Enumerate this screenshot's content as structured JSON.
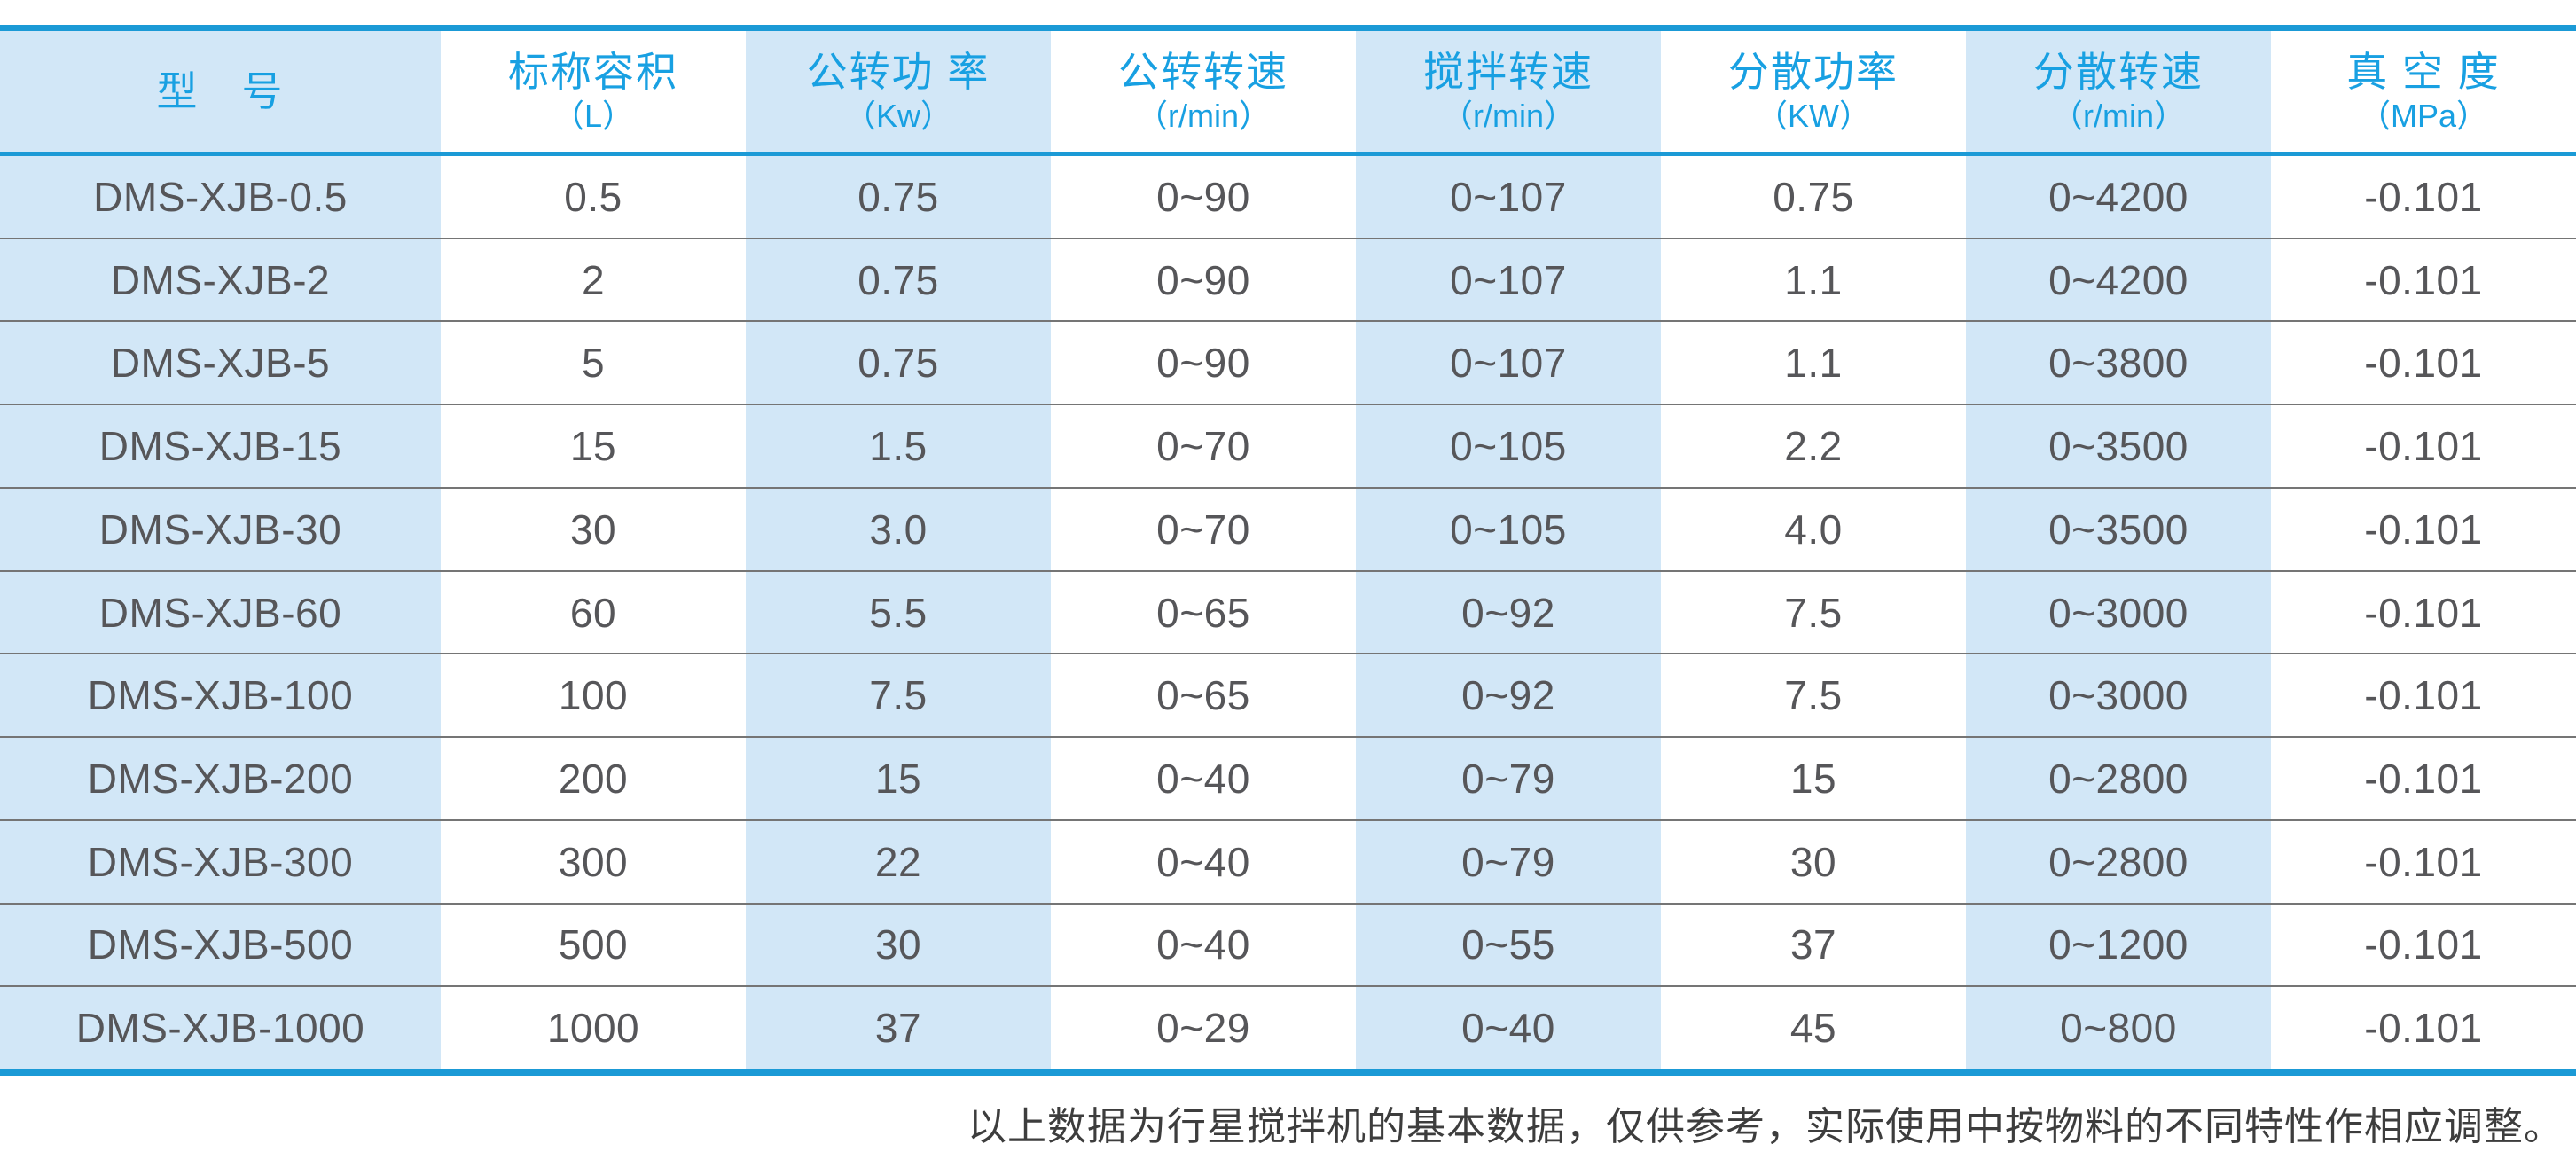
{
  "table": {
    "columns": [
      {
        "key": "model",
        "main": "型　号",
        "sub": "",
        "shaded": true
      },
      {
        "key": "capacity",
        "main": "标称容积",
        "sub": "（L）",
        "shaded": false
      },
      {
        "key": "rev-power",
        "main": "公转功 率",
        "sub": "（Kw）",
        "shaded": true
      },
      {
        "key": "rev-speed",
        "main": "公转转速",
        "sub": "（r/min）",
        "shaded": false
      },
      {
        "key": "stir-speed",
        "main": "搅拌转速",
        "sub": "（r/min）",
        "shaded": true
      },
      {
        "key": "dispersal-power",
        "main": "分散功率",
        "sub": "（KW）",
        "shaded": false
      },
      {
        "key": "dispersal-speed",
        "main": "分散转速",
        "sub": "（r/min）",
        "shaded": true
      },
      {
        "key": "vacuum",
        "main": "真 空 度",
        "sub": "（MPa）",
        "shaded": false
      }
    ],
    "rows": [
      [
        "DMS-XJB-0.5",
        "0.5",
        "0.75",
        "0~90",
        "0~107",
        "0.75",
        "0~4200",
        "-0.101"
      ],
      [
        "DMS-XJB-2",
        "2",
        "0.75",
        "0~90",
        "0~107",
        "1.1",
        "0~4200",
        "-0.101"
      ],
      [
        "DMS-XJB-5",
        "5",
        "0.75",
        "0~90",
        "0~107",
        "1.1",
        "0~3800",
        "-0.101"
      ],
      [
        "DMS-XJB-15",
        "15",
        "1.5",
        "0~70",
        "0~105",
        "2.2",
        "0~3500",
        "-0.101"
      ],
      [
        "DMS-XJB-30",
        "30",
        "3.0",
        "0~70",
        "0~105",
        "4.0",
        "0~3500",
        "-0.101"
      ],
      [
        "DMS-XJB-60",
        "60",
        "5.5",
        "0~65",
        "0~92",
        "7.5",
        "0~3000",
        "-0.101"
      ],
      [
        "DMS-XJB-100",
        "100",
        "7.5",
        "0~65",
        "0~92",
        "7.5",
        "0~3000",
        "-0.101"
      ],
      [
        "DMS-XJB-200",
        "200",
        "15",
        "0~40",
        "0~79",
        "15",
        "0~2800",
        "-0.101"
      ],
      [
        "DMS-XJB-300",
        "300",
        "22",
        "0~40",
        "0~79",
        "30",
        "0~2800",
        "-0.101"
      ],
      [
        "DMS-XJB-500",
        "500",
        "30",
        "0~40",
        "0~55",
        "37",
        "0~1200",
        "-0.101"
      ],
      [
        "DMS-XJB-1000",
        "1000",
        "37",
        "0~29",
        "0~40",
        "45",
        "0~800",
        "-0.101"
      ]
    ]
  },
  "note": {
    "text": "以上数据为行星搅拌机的基本数据，仅供参考，实际使用中按物料的不同特性作相应调整。"
  },
  "colors": {
    "accent_blue": "#1b9ad6",
    "header_text_blue": "#18a0e2",
    "shaded_column_blue": "#d2e7f7",
    "data_text_gray": "#565659",
    "row_line_gray": "#757575",
    "note_text_gray": "#3d3d3d"
  }
}
